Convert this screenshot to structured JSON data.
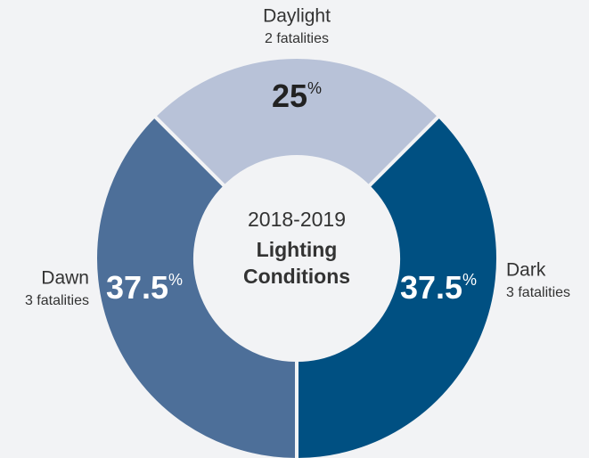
{
  "chart_data": {
    "type": "donut",
    "center_title": "2018-2019",
    "center_subtitle_lines": [
      "Lighting",
      "Conditions"
    ],
    "categories": [
      "Daylight",
      "Dark",
      "Dawn"
    ],
    "details": [
      "2 fatalities",
      "3 fatalities",
      "3 fatalities"
    ],
    "values": [
      25,
      37.5,
      37.5
    ],
    "value_suffix": "%",
    "colors": [
      "#b8c2d8",
      "#005082",
      "#4d6f99"
    ]
  }
}
